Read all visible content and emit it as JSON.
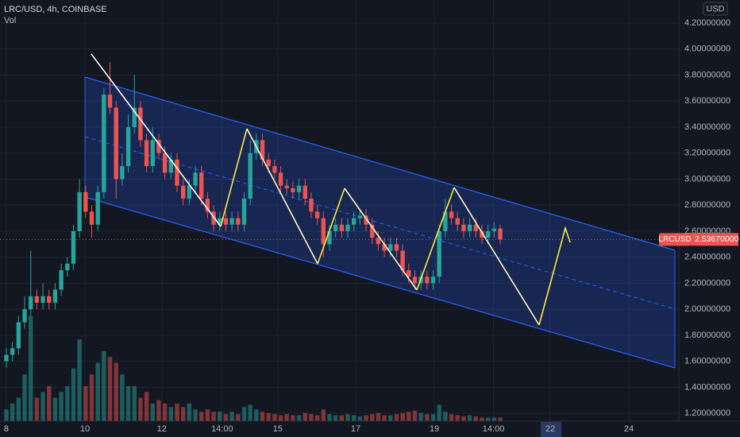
{
  "header": {
    "symbol": "LRC/USD, 4h, COINBASE",
    "volume_label": "Vol"
  },
  "chart_data": {
    "type": "candlestick",
    "currency": "USD",
    "open": [
      1.6,
      1.65,
      1.7,
      1.9,
      2.0,
      2.1,
      2.05,
      2.1,
      2.05,
      2.15,
      2.3,
      2.35,
      2.6,
      2.9,
      2.75,
      2.65,
      2.9,
      3.65,
      3.55,
      3.0,
      3.1,
      3.4,
      3.55,
      3.3,
      3.1,
      3.3,
      3.2,
      3.05,
      3.15,
      2.95,
      2.85,
      2.95,
      3.05,
      2.85,
      2.75,
      2.65,
      2.7,
      2.65,
      2.7,
      2.65,
      2.85,
      3.2,
      3.3,
      3.15,
      3.1,
      3.05,
      2.95,
      2.93,
      2.9,
      2.95,
      2.85,
      2.75,
      2.7,
      2.5,
      2.6,
      2.65,
      2.6,
      2.65,
      2.7,
      2.72,
      2.65,
      2.55,
      2.5,
      2.45,
      2.5,
      2.45,
      2.3,
      2.25,
      2.2,
      2.25,
      2.2,
      2.25,
      2.6,
      2.75,
      2.7,
      2.65,
      2.6,
      2.65,
      2.6,
      2.55,
      2.6,
      2.62
    ],
    "high": [
      1.7,
      1.75,
      1.95,
      2.1,
      2.45,
      2.15,
      2.2,
      2.15,
      2.2,
      2.35,
      2.4,
      2.65,
      3.0,
      2.95,
      2.8,
      2.95,
      3.7,
      3.9,
      3.6,
      3.2,
      3.5,
      3.8,
      3.6,
      3.35,
      3.4,
      3.35,
      3.25,
      3.2,
      3.2,
      3.0,
      3.0,
      3.1,
      3.1,
      2.9,
      2.8,
      2.75,
      2.75,
      2.75,
      2.75,
      2.9,
      3.3,
      3.35,
      3.35,
      3.2,
      3.15,
      3.1,
      3.0,
      2.98,
      3.0,
      3.0,
      2.9,
      2.8,
      2.75,
      2.65,
      2.7,
      2.7,
      2.7,
      2.75,
      2.77,
      2.77,
      2.7,
      2.6,
      2.55,
      2.55,
      2.55,
      2.5,
      2.35,
      2.3,
      2.3,
      2.3,
      2.3,
      2.65,
      2.85,
      2.8,
      2.75,
      2.7,
      2.7,
      2.7,
      2.65,
      2.65,
      2.67,
      2.65
    ],
    "low": [
      1.55,
      1.6,
      1.65,
      1.85,
      1.95,
      2.0,
      2.0,
      2.0,
      2.0,
      2.1,
      2.25,
      2.3,
      2.55,
      2.7,
      2.55,
      2.6,
      2.85,
      3.5,
      2.85,
      2.95,
      3.05,
      3.35,
      3.25,
      3.05,
      3.05,
      3.15,
      3.0,
      3.0,
      2.9,
      2.8,
      2.8,
      2.9,
      2.8,
      2.7,
      2.6,
      2.6,
      2.6,
      2.6,
      2.6,
      2.6,
      2.8,
      3.15,
      3.1,
      3.05,
      3.0,
      2.9,
      2.88,
      2.85,
      2.85,
      2.8,
      2.7,
      2.65,
      2.4,
      2.45,
      2.55,
      2.55,
      2.55,
      2.6,
      2.65,
      2.6,
      2.5,
      2.45,
      2.4,
      2.4,
      2.4,
      2.25,
      2.2,
      2.15,
      2.15,
      2.15,
      2.15,
      2.2,
      2.55,
      2.65,
      2.6,
      2.55,
      2.55,
      2.55,
      2.5,
      2.5,
      2.55,
      2.5
    ],
    "close": [
      1.65,
      1.7,
      1.9,
      2.0,
      2.1,
      2.05,
      2.1,
      2.05,
      2.15,
      2.3,
      2.35,
      2.6,
      2.9,
      2.75,
      2.65,
      2.9,
      3.65,
      3.55,
      3.0,
      3.1,
      3.4,
      3.55,
      3.3,
      3.1,
      3.3,
      3.2,
      3.05,
      3.15,
      2.95,
      2.85,
      2.95,
      3.05,
      2.85,
      2.75,
      2.65,
      2.7,
      2.65,
      2.7,
      2.65,
      2.85,
      3.2,
      3.3,
      3.15,
      3.1,
      3.05,
      2.95,
      2.93,
      2.9,
      2.95,
      2.85,
      2.75,
      2.7,
      2.5,
      2.6,
      2.65,
      2.6,
      2.65,
      2.7,
      2.72,
      2.65,
      2.55,
      2.5,
      2.45,
      2.5,
      2.45,
      2.3,
      2.25,
      2.2,
      2.25,
      2.2,
      2.25,
      2.6,
      2.75,
      2.7,
      2.65,
      2.6,
      2.65,
      2.6,
      2.55,
      2.6,
      2.62,
      2.5367
    ],
    "volume": [
      10,
      15,
      20,
      40,
      90,
      20,
      25,
      30,
      20,
      25,
      30,
      45,
      70,
      30,
      40,
      50,
      60,
      55,
      50,
      40,
      30,
      30,
      20,
      25,
      15,
      18,
      15,
      12,
      15,
      12,
      15,
      10,
      8,
      10,
      8,
      8,
      6,
      8,
      6,
      12,
      14,
      10,
      8,
      7,
      6,
      5,
      6,
      5,
      5,
      7,
      6,
      5,
      10,
      6,
      5,
      5,
      6,
      5,
      4,
      5,
      6,
      7,
      5,
      5,
      6,
      7,
      8,
      9,
      7,
      6,
      6,
      14,
      8,
      6,
      5,
      4,
      5,
      4,
      3,
      3,
      3,
      3
    ],
    "volume_lim": [
      0,
      100
    ],
    "up_color": "#26a69a",
    "down_color": "#ef5350",
    "ylim": [
      1.14,
      4.377
    ],
    "yticks": [
      {
        "value": 1.2,
        "label": "1.20000000"
      },
      {
        "value": 1.4,
        "label": "1.40000000"
      },
      {
        "value": 1.6,
        "label": "1.60000000"
      },
      {
        "value": 1.8,
        "label": "1.80000000"
      },
      {
        "value": 2.0,
        "label": "2.00000000"
      },
      {
        "value": 2.2,
        "label": "2.20000000"
      },
      {
        "value": 2.4,
        "label": "2.40000000"
      },
      {
        "value": 2.6,
        "label": "2.60000000"
      },
      {
        "value": 2.8,
        "label": "2.80000000"
      },
      {
        "value": 3.0,
        "label": "3.00000000"
      },
      {
        "value": 3.2,
        "label": "3.20000000"
      },
      {
        "value": 3.4,
        "label": "3.40000000"
      },
      {
        "value": 3.6,
        "label": "3.60000000"
      },
      {
        "value": 3.8,
        "label": "3.80000000"
      },
      {
        "value": 4.0,
        "label": "4.00000000"
      },
      {
        "value": 4.2,
        "label": "4.20000000"
      }
    ],
    "xlim": [
      -1.04,
      110.3
    ],
    "xticks": [
      {
        "value": 0,
        "label": "8"
      },
      {
        "value": 12.9,
        "label": "10"
      },
      {
        "value": 25.5,
        "label": "12"
      },
      {
        "value": 35.4,
        "label": "14:00"
      },
      {
        "value": 44.5,
        "label": "15"
      },
      {
        "value": 57.3,
        "label": "17"
      },
      {
        "value": 70.2,
        "label": "19"
      },
      {
        "value": 79.9,
        "label": "14:00"
      },
      {
        "value": 89.2,
        "label": "22"
      },
      {
        "value": 102.1,
        "label": "24"
      }
    ],
    "last_price": {
      "name": "LRCUSD",
      "label": "2.53670000"
    }
  }
}
